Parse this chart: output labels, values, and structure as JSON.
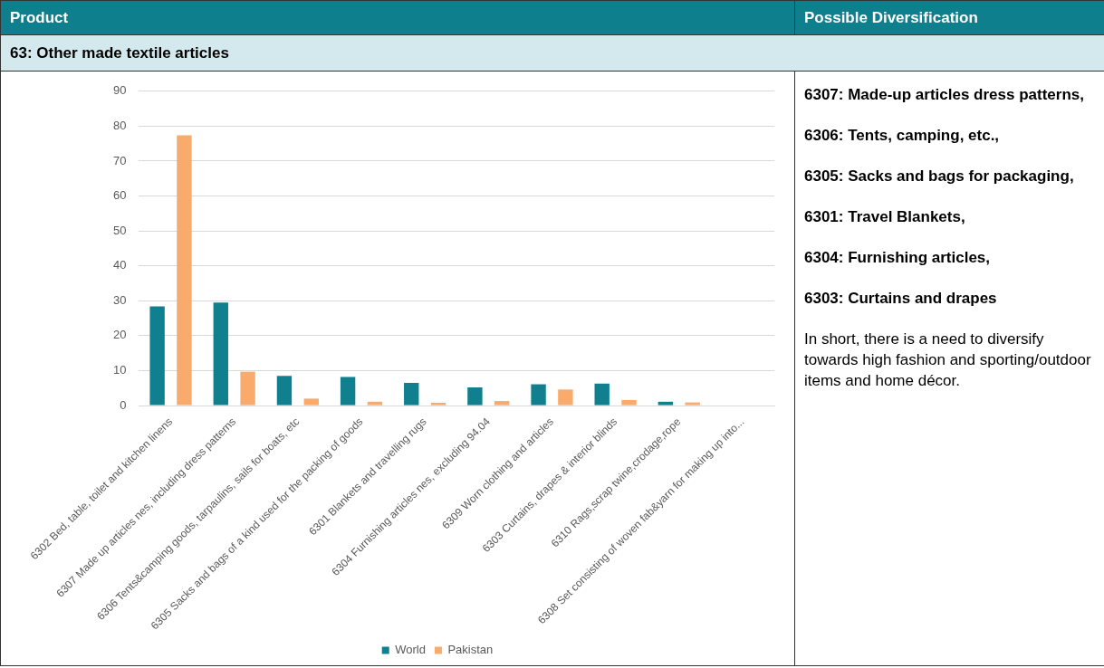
{
  "chart_data": {
    "type": "bar",
    "categories": [
      "6302 Bed, table, toilet and kitchen linens",
      "6307 Made up articles nes, including dress patterns",
      "6306 Tents&camping goods, tarpaulins, sails for boats, etc",
      "6305 Sacks and bags of a kind used for the packing of goods",
      "6301 Blankets and travelling rugs",
      "6304 Furnishing articles nes, excluding 94.04",
      "6309 Worn clothing and articles",
      "6303 Curtains, drapes & interior blinds",
      "6310 Rags,scrap twine,crodage,rope",
      "6308 Set consisting of woven fab&yarn for making up into..."
    ],
    "series": [
      {
        "name": "World",
        "color": "#10808f",
        "values": [
          28.4,
          29.5,
          8.5,
          8.2,
          6.5,
          5.2,
          6.1,
          6.3,
          1.1,
          null
        ]
      },
      {
        "name": "Pakistan",
        "color": "#f9ab6d",
        "values": [
          77.4,
          9.7,
          2.0,
          1.1,
          0.8,
          1.3,
          4.6,
          1.6,
          0.9,
          null
        ]
      }
    ],
    "ylim": [
      0,
      90
    ],
    "yticks": [
      0,
      10,
      20,
      30,
      40,
      50,
      60,
      70,
      80,
      90
    ],
    "grid": "y",
    "legend": "bottom",
    "annotations": [
      "Product",
      "Possible Diversification",
      "63: Other made textile articles",
      "6307: Made-up articles dress patterns,",
      "6306: Tents, camping, etc.,",
      "6305: Sacks and bags for packaging,",
      "6301: Travel Blankets,",
      "6304: Furnishing articles,",
      "6303: Curtains and drapes",
      "In short, there is a need to diversify towards high fashion and sporting/outdoor items and home décor."
    ]
  }
}
